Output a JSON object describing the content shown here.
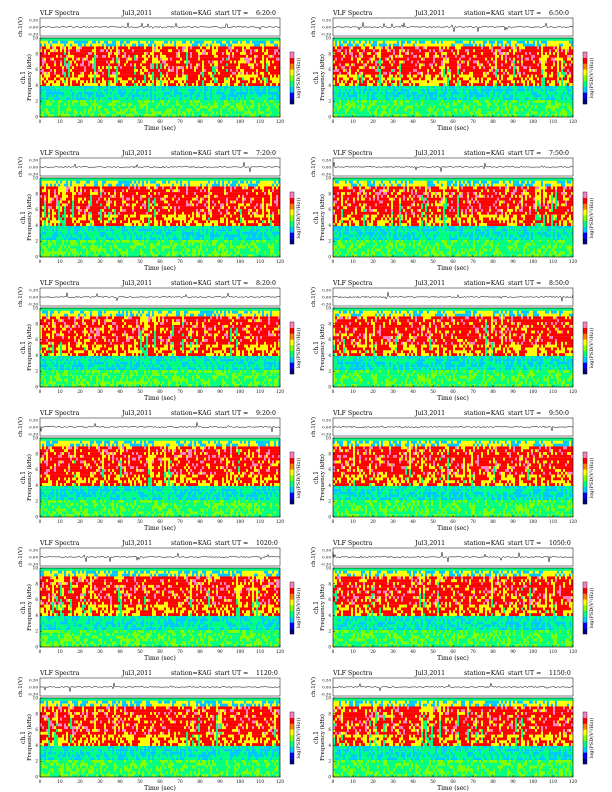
{
  "common": {
    "label_left": "VLF Spectra",
    "date": "Jul3,2011",
    "station": "station=KAG",
    "start_prefix": "start  UT =",
    "ts_ylabel": "ch.1(V)",
    "ts_ticks": [
      "0.30",
      "0.00",
      "-0.30"
    ],
    "spec_ylabel_1": "ch.1",
    "spec_ylabel_2": "Frequency (kHz)",
    "freq_ticks": [
      "0",
      "2",
      "4",
      "6",
      "8",
      "10"
    ],
    "time_ticks": [
      "0",
      "10",
      "20",
      "30",
      "40",
      "50",
      "60",
      "70",
      "80",
      "90",
      "100",
      "110",
      "120"
    ],
    "xlabel": "Time  (sec)",
    "cbar_label": "log(PSD(V²/Hz))",
    "cbar_colors": [
      "#00008b",
      "#0000ff",
      "#00c8ff",
      "#00ff80",
      "#80ff00",
      "#ffff00",
      "#ff8000",
      "#ff0000",
      "#ff80c0"
    ]
  },
  "chart_data": [
    {
      "type": "heatmap",
      "panel": 1,
      "start_ut": "6:20:0",
      "xlim": [
        0,
        120
      ],
      "ylim": [
        0,
        10
      ],
      "xlabel": "Time (sec)",
      "ylabel": "Frequency (kHz)"
    },
    {
      "type": "heatmap",
      "panel": 2,
      "start_ut": "6:50:0",
      "xlim": [
        0,
        120
      ],
      "ylim": [
        0,
        10
      ],
      "xlabel": "Time (sec)",
      "ylabel": "Frequency (kHz)"
    },
    {
      "type": "heatmap",
      "panel": 3,
      "start_ut": "7:20:0",
      "xlim": [
        0,
        120
      ],
      "ylim": [
        0,
        10
      ],
      "xlabel": "Time (sec)",
      "ylabel": "Frequency (kHz)"
    },
    {
      "type": "heatmap",
      "panel": 4,
      "start_ut": "7:50:0",
      "xlim": [
        0,
        120
      ],
      "ylim": [
        0,
        10
      ],
      "xlabel": "Time (sec)",
      "ylabel": "Frequency (kHz)"
    },
    {
      "type": "heatmap",
      "panel": 5,
      "start_ut": "8:20:0",
      "xlim": [
        0,
        120
      ],
      "ylim": [
        0,
        10
      ],
      "xlabel": "Time (sec)",
      "ylabel": "Frequency (kHz)"
    },
    {
      "type": "heatmap",
      "panel": 6,
      "start_ut": "8:50:0",
      "xlim": [
        0,
        120
      ],
      "ylim": [
        0,
        10
      ],
      "xlabel": "Time (sec)",
      "ylabel": "Frequency (kHz)"
    },
    {
      "type": "heatmap",
      "panel": 7,
      "start_ut": "9:20:0",
      "xlim": [
        0,
        120
      ],
      "ylim": [
        0,
        10
      ],
      "xlabel": "Time (sec)",
      "ylabel": "Frequency (kHz)"
    },
    {
      "type": "heatmap",
      "panel": 8,
      "start_ut": "9:50:0",
      "xlim": [
        0,
        120
      ],
      "ylim": [
        0,
        10
      ],
      "xlabel": "Time (sec)",
      "ylabel": "Frequency (kHz)"
    },
    {
      "type": "heatmap",
      "panel": 9,
      "start_ut": "1020:0",
      "xlim": [
        0,
        120
      ],
      "ylim": [
        0,
        10
      ],
      "xlabel": "Time (sec)",
      "ylabel": "Frequency (kHz)"
    },
    {
      "type": "heatmap",
      "panel": 10,
      "start_ut": "1050:0",
      "xlim": [
        0,
        120
      ],
      "ylim": [
        0,
        10
      ],
      "xlabel": "Time (sec)",
      "ylabel": "Frequency (kHz)"
    },
    {
      "type": "heatmap",
      "panel": 11,
      "start_ut": "1120:0",
      "xlim": [
        0,
        120
      ],
      "ylim": [
        0,
        10
      ],
      "xlabel": "Time (sec)",
      "ylabel": "Frequency (kHz)"
    },
    {
      "type": "heatmap",
      "panel": 12,
      "start_ut": "1150:0",
      "xlim": [
        0,
        120
      ],
      "ylim": [
        0,
        10
      ],
      "xlabel": "Time (sec)",
      "ylabel": "Frequency (kHz)"
    }
  ]
}
